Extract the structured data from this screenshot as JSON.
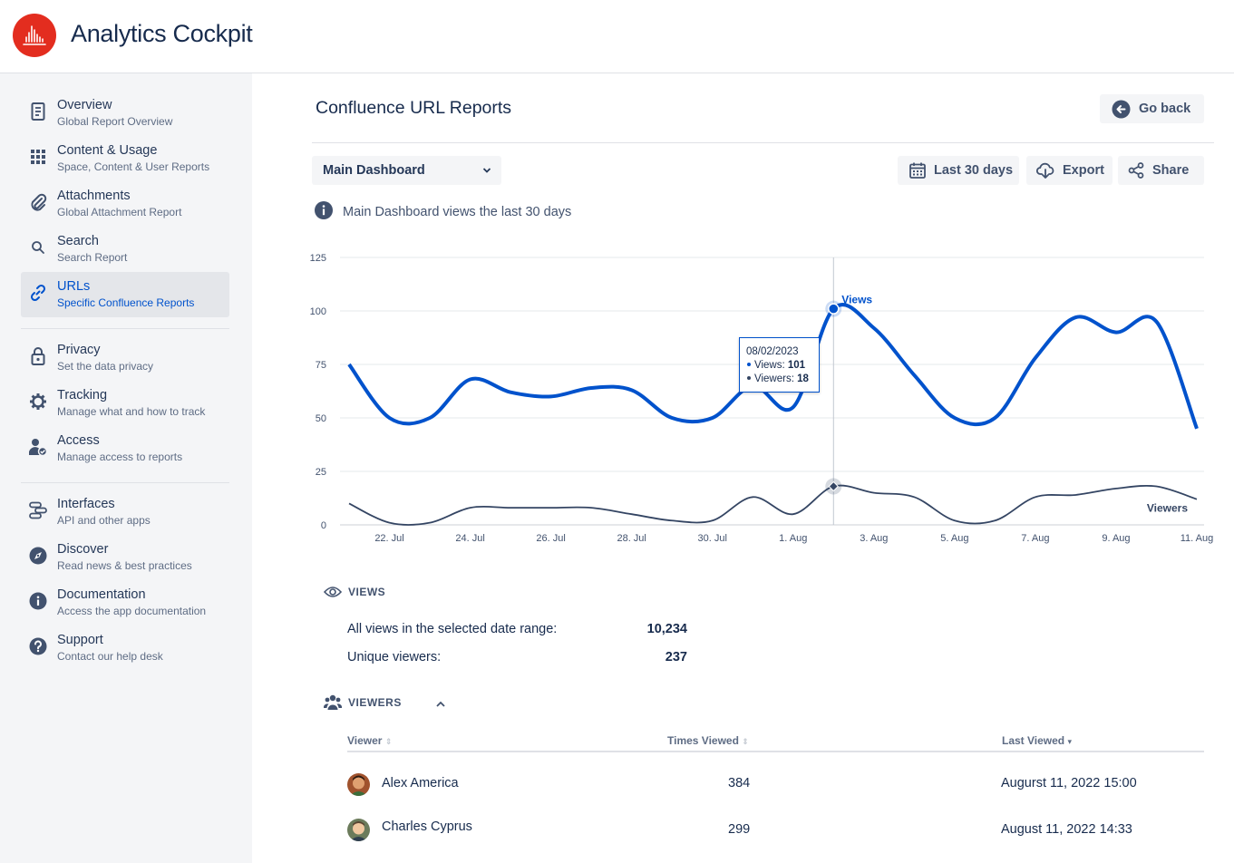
{
  "app": {
    "title": "Analytics Cockpit"
  },
  "sidebar": {
    "items": [
      {
        "title": "Overview",
        "subtitle": "Global Report Overview"
      },
      {
        "title": "Content & Usage",
        "subtitle": "Space, Content & User Reports"
      },
      {
        "title": "Attachments",
        "subtitle": "Global Attachment Report"
      },
      {
        "title": "Search",
        "subtitle": "Search Report"
      },
      {
        "title": "URLs",
        "subtitle": "Specific Confluence Reports"
      },
      {
        "title": "Privacy",
        "subtitle": "Set the data privacy"
      },
      {
        "title": "Tracking",
        "subtitle": "Manage what and how to track"
      },
      {
        "title": "Access",
        "subtitle": "Manage access to reports"
      },
      {
        "title": "Interfaces",
        "subtitle": "API and other apps"
      },
      {
        "title": "Discover",
        "subtitle": "Read news & best practices"
      },
      {
        "title": "Documentation",
        "subtitle": "Access the app documentation"
      },
      {
        "title": "Support",
        "subtitle": "Contact our help desk"
      }
    ]
  },
  "header": {
    "title": "Confluence URL Reports",
    "go_back": "Go back"
  },
  "toolbar": {
    "dashboard_select": "Main Dashboard",
    "date_range": "Last 30 days",
    "export": "Export",
    "share": "Share"
  },
  "info": {
    "text": "Main Dashboard views the last 30 days"
  },
  "chart_data": {
    "type": "line",
    "x": [
      "21. Jul",
      "22. Jul",
      "23. Jul",
      "24. Jul",
      "25. Jul",
      "26. Jul",
      "27. Jul",
      "28. Jul",
      "29. Jul",
      "30. Jul",
      "31. Jul",
      "1. Aug",
      "2. Aug",
      "3. Aug",
      "4. Aug",
      "5. Aug",
      "6. Aug",
      "7. Aug",
      "8. Aug",
      "9. Aug",
      "10. Aug",
      "11. Aug"
    ],
    "x_ticks": [
      "22. Jul",
      "24. Jul",
      "26. Jul",
      "28. Jul",
      "30. Jul",
      "1. Aug",
      "3. Aug",
      "5. Aug",
      "7. Aug",
      "9. Aug",
      "11. Aug"
    ],
    "series": [
      {
        "name": "Views",
        "color": "#0052cc",
        "values": [
          75,
          50,
          50,
          68,
          62,
          60,
          64,
          63,
          50,
          50,
          65,
          55,
          101,
          92,
          70,
          50,
          50,
          78,
          97,
          90,
          95,
          45
        ]
      },
      {
        "name": "Viewers",
        "color": "#344563",
        "values": [
          10,
          1,
          1,
          8,
          8,
          8,
          8,
          5,
          2,
          2,
          13,
          5,
          18,
          15,
          13,
          2,
          2,
          13,
          14,
          17,
          18,
          12
        ]
      }
    ],
    "ylim": [
      0,
      125
    ],
    "y_ticks": [
      0,
      25,
      50,
      75,
      100,
      125
    ],
    "grid": true
  },
  "tooltip": {
    "date": "08/02/2023",
    "views_label": "Views:",
    "views_value": "101",
    "viewers_label": "Viewers:",
    "viewers_value": "18"
  },
  "views_section": {
    "heading": "VIEWS",
    "all_views_label": "All views in the selected date range:",
    "all_views_value": "10,234",
    "unique_label": "Unique viewers:",
    "unique_value": "237"
  },
  "viewers_section": {
    "heading": "VIEWERS",
    "columns": [
      "Viewer",
      "Times Viewed",
      "Last Viewed"
    ],
    "rows": [
      {
        "name": "Alex America",
        "times": "384",
        "last": "Augurst 11, 2022 15:00"
      },
      {
        "name": "Charles Cyprus",
        "times": "299",
        "last": "August 11, 2022 14:33"
      }
    ]
  }
}
